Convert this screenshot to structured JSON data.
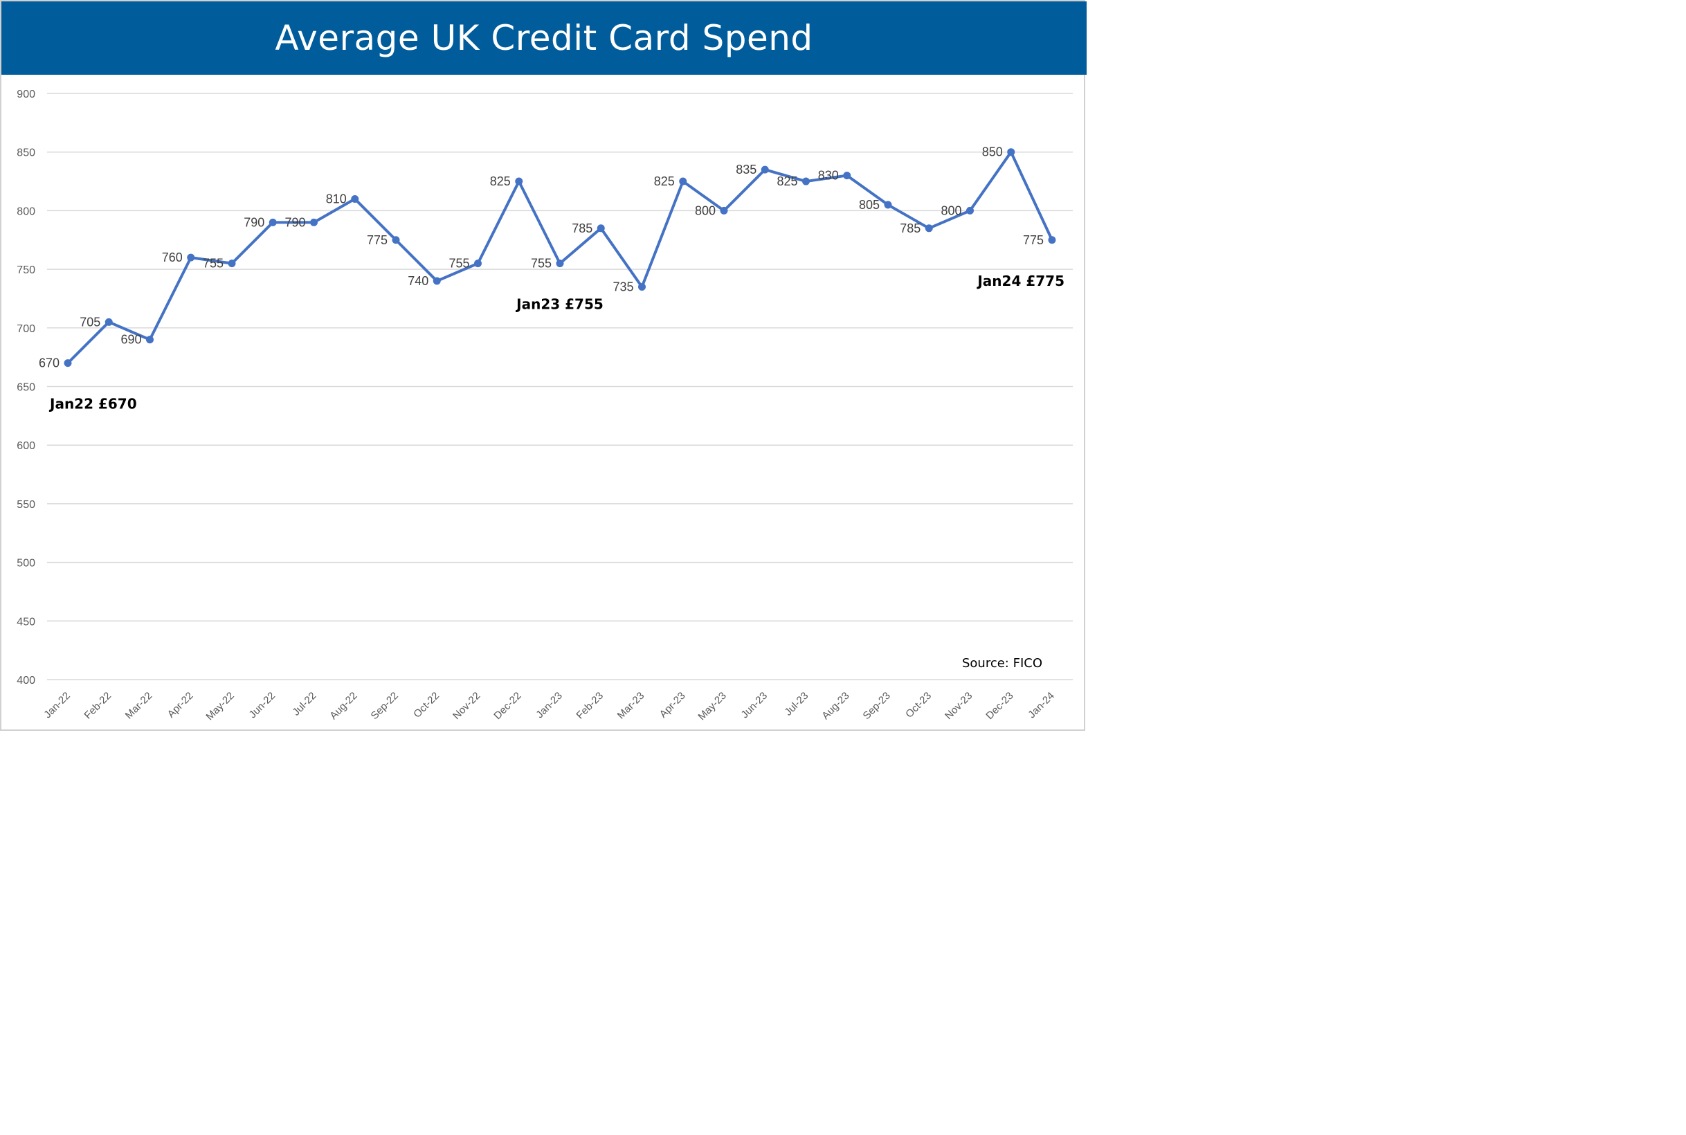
{
  "chart_data": {
    "type": "line",
    "title": "Average UK Credit Card Spend",
    "xlabel": "",
    "ylabel": "",
    "ylim": [
      400,
      900
    ],
    "yticks": [
      400,
      450,
      500,
      550,
      600,
      650,
      700,
      750,
      800,
      850,
      900
    ],
    "grid": "horizontal",
    "legend": "none",
    "categories": [
      "Jan-22",
      "Feb-22",
      "Mar-22",
      "Apr-22",
      "May-22",
      "Jun-22",
      "Jul-22",
      "Aug-22",
      "Sep-22",
      "Oct-22",
      "Nov-22",
      "Dec-22",
      "Jan-23",
      "Feb-23",
      "Mar-23",
      "Apr-23",
      "May-23",
      "Jun-23",
      "Jul-23",
      "Aug-23",
      "Sep-23",
      "Oct-23",
      "Nov-23",
      "Dec-23",
      "Jan-24"
    ],
    "series": [
      {
        "values": [
          670,
          705,
          690,
          760,
          755,
          790,
          790,
          810,
          775,
          740,
          755,
          825,
          755,
          785,
          735,
          825,
          800,
          835,
          825,
          830,
          805,
          785,
          800,
          850,
          775
        ],
        "color": "#4472c4"
      }
    ],
    "annotations": [
      {
        "text": "Jan22 £670",
        "category": "Jan-22",
        "value": 670
      },
      {
        "text": "Jan23 £755",
        "category": "Jan-23",
        "value": 755
      },
      {
        "text": "Jan24 £775",
        "category": "Jan-24",
        "value": 775
      }
    ],
    "source": "Source: FICO"
  },
  "colors": {
    "header": "#005c9b",
    "line": "#4472c4",
    "grid": "#d9d9d9"
  }
}
